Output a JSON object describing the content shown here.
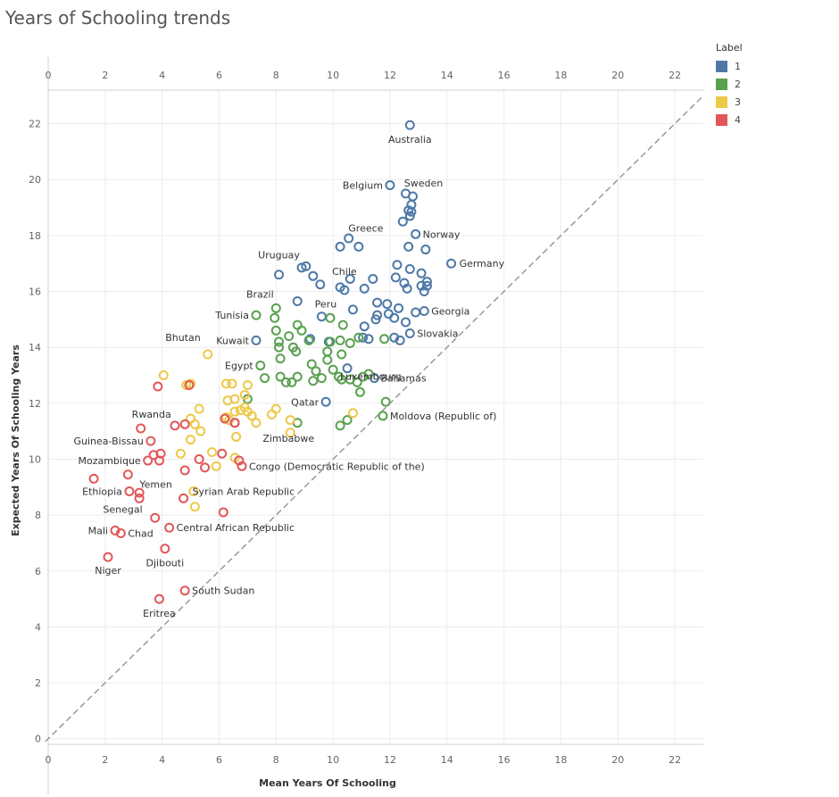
{
  "page": {
    "title": "Years of Schooling trends"
  },
  "legend": {
    "title": "Label",
    "items": [
      {
        "label": "1",
        "color": "#4e79a7"
      },
      {
        "label": "2",
        "color": "#59a14f"
      },
      {
        "label": "3",
        "color": "#edc948"
      },
      {
        "label": "4",
        "color": "#e15759"
      }
    ]
  },
  "chart_data": {
    "type": "scatter",
    "title": "Years of Schooling trends",
    "xlabel": "Mean Years Of Schooling",
    "ylabel": "Expected Years Of Schooling Years",
    "xlim": [
      0,
      23
    ],
    "ylim": [
      -0.2,
      23.2
    ],
    "xticks": [
      0,
      2,
      4,
      6,
      8,
      10,
      12,
      14,
      16,
      18,
      20,
      22
    ],
    "yticks": [
      0,
      2,
      4,
      6,
      8,
      10,
      12,
      14,
      16,
      18,
      20,
      22
    ],
    "grid": true,
    "reference_line": "y = x (dashed)",
    "legend_position": "top-right",
    "series": [
      {
        "name": "1",
        "color": "#4e79a7",
        "points": [
          {
            "x": 12.7,
            "y": 21.95,
            "label": "Australia"
          },
          {
            "x": 12.0,
            "y": 19.8,
            "label": "Belgium"
          },
          {
            "x": 12.55,
            "y": 19.5,
            "label": "Sweden"
          },
          {
            "x": 12.8,
            "y": 19.4
          },
          {
            "x": 12.75,
            "y": 19.1
          },
          {
            "x": 12.65,
            "y": 18.9
          },
          {
            "x": 12.75,
            "y": 18.85
          },
          {
            "x": 12.7,
            "y": 18.7
          },
          {
            "x": 12.45,
            "y": 18.5
          },
          {
            "x": 10.55,
            "y": 17.9
          },
          {
            "x": 10.25,
            "y": 17.6
          },
          {
            "x": 10.9,
            "y": 17.6,
            "label": "Greece"
          },
          {
            "x": 12.9,
            "y": 18.05,
            "label": "Norway"
          },
          {
            "x": 12.65,
            "y": 17.6
          },
          {
            "x": 13.25,
            "y": 17.5
          },
          {
            "x": 14.15,
            "y": 17.0,
            "label": "Germany"
          },
          {
            "x": 12.25,
            "y": 16.95
          },
          {
            "x": 12.7,
            "y": 16.8
          },
          {
            "x": 13.1,
            "y": 16.65
          },
          {
            "x": 12.2,
            "y": 16.5
          },
          {
            "x": 12.5,
            "y": 16.3
          },
          {
            "x": 13.3,
            "y": 16.35
          },
          {
            "x": 13.3,
            "y": 16.2
          },
          {
            "x": 13.1,
            "y": 16.2
          },
          {
            "x": 12.6,
            "y": 16.1
          },
          {
            "x": 13.2,
            "y": 16.0
          },
          {
            "x": 11.4,
            "y": 16.45
          },
          {
            "x": 10.6,
            "y": 16.45
          },
          {
            "x": 11.1,
            "y": 16.1
          },
          {
            "x": 10.25,
            "y": 16.15
          },
          {
            "x": 10.4,
            "y": 16.05,
            "label": "Chile"
          },
          {
            "x": 8.9,
            "y": 16.85
          },
          {
            "x": 9.05,
            "y": 16.9
          },
          {
            "x": 8.1,
            "y": 16.6,
            "label": "Uruguay"
          },
          {
            "x": 9.3,
            "y": 16.55
          },
          {
            "x": 9.55,
            "y": 16.25
          },
          {
            "x": 8.75,
            "y": 15.65
          },
          {
            "x": 11.55,
            "y": 15.6
          },
          {
            "x": 11.9,
            "y": 15.55
          },
          {
            "x": 12.3,
            "y": 15.4
          },
          {
            "x": 10.7,
            "y": 15.35
          },
          {
            "x": 11.55,
            "y": 15.15
          },
          {
            "x": 11.95,
            "y": 15.2
          },
          {
            "x": 12.15,
            "y": 15.05
          },
          {
            "x": 12.9,
            "y": 15.25
          },
          {
            "x": 13.2,
            "y": 15.3,
            "label": "Georgia"
          },
          {
            "x": 12.55,
            "y": 14.9
          },
          {
            "x": 11.1,
            "y": 14.75
          },
          {
            "x": 11.5,
            "y": 15.0
          },
          {
            "x": 9.6,
            "y": 15.1
          },
          {
            "x": 12.7,
            "y": 14.5,
            "label": "Slovakia"
          },
          {
            "x": 12.35,
            "y": 14.25
          },
          {
            "x": 12.15,
            "y": 14.35
          },
          {
            "x": 11.05,
            "y": 14.35
          },
          {
            "x": 11.25,
            "y": 14.3
          },
          {
            "x": 9.85,
            "y": 14.2
          },
          {
            "x": 9.2,
            "y": 14.3
          },
          {
            "x": 7.3,
            "y": 14.25,
            "label": "Kuwait"
          },
          {
            "x": 10.5,
            "y": 13.25,
            "label": "Luxembourg"
          },
          {
            "x": 11.45,
            "y": 12.9,
            "label": "Bahamas"
          },
          {
            "x": 9.75,
            "y": 12.05,
            "label": "Qatar"
          }
        ]
      },
      {
        "name": "2",
        "color": "#59a14f",
        "points": [
          {
            "x": 8.0,
            "y": 15.4,
            "label": "Brazil"
          },
          {
            "x": 7.95,
            "y": 15.05
          },
          {
            "x": 7.3,
            "y": 15.15,
            "label": "Tunisia"
          },
          {
            "x": 9.9,
            "y": 15.05,
            "label": "Peru"
          },
          {
            "x": 10.35,
            "y": 14.8
          },
          {
            "x": 8.75,
            "y": 14.8
          },
          {
            "x": 8.9,
            "y": 14.6
          },
          {
            "x": 8.0,
            "y": 14.6
          },
          {
            "x": 8.45,
            "y": 14.4
          },
          {
            "x": 9.15,
            "y": 14.25
          },
          {
            "x": 8.1,
            "y": 14.2
          },
          {
            "x": 8.6,
            "y": 14.0
          },
          {
            "x": 8.1,
            "y": 14.0
          },
          {
            "x": 8.7,
            "y": 13.85
          },
          {
            "x": 9.9,
            "y": 14.2
          },
          {
            "x": 10.25,
            "y": 14.25
          },
          {
            "x": 10.6,
            "y": 14.15
          },
          {
            "x": 10.9,
            "y": 14.35
          },
          {
            "x": 11.8,
            "y": 14.3
          },
          {
            "x": 8.15,
            "y": 13.6
          },
          {
            "x": 7.45,
            "y": 13.35,
            "label": "Egypt"
          },
          {
            "x": 9.25,
            "y": 13.4
          },
          {
            "x": 9.4,
            "y": 13.15
          },
          {
            "x": 9.8,
            "y": 13.85
          },
          {
            "x": 10.3,
            "y": 13.75
          },
          {
            "x": 10.0,
            "y": 13.2
          },
          {
            "x": 9.8,
            "y": 13.55
          },
          {
            "x": 7.6,
            "y": 12.9
          },
          {
            "x": 8.15,
            "y": 12.95
          },
          {
            "x": 8.35,
            "y": 12.75
          },
          {
            "x": 8.55,
            "y": 12.75
          },
          {
            "x": 8.75,
            "y": 12.95
          },
          {
            "x": 9.3,
            "y": 12.8
          },
          {
            "x": 9.6,
            "y": 12.9
          },
          {
            "x": 10.2,
            "y": 12.95
          },
          {
            "x": 10.3,
            "y": 12.85
          },
          {
            "x": 10.6,
            "y": 12.85
          },
          {
            "x": 10.85,
            "y": 12.75
          },
          {
            "x": 11.05,
            "y": 12.95
          },
          {
            "x": 11.25,
            "y": 13.05
          },
          {
            "x": 10.95,
            "y": 12.4
          },
          {
            "x": 7.0,
            "y": 12.15
          },
          {
            "x": 11.85,
            "y": 12.05
          },
          {
            "x": 8.75,
            "y": 11.3,
            "label": "Zimbabwe"
          },
          {
            "x": 10.25,
            "y": 11.2
          },
          {
            "x": 10.5,
            "y": 11.4
          },
          {
            "x": 11.75,
            "y": 11.55,
            "label": "Moldova (Republic of)"
          }
        ]
      },
      {
        "name": "3",
        "color": "#edc948",
        "points": [
          {
            "x": 5.6,
            "y": 13.75,
            "label": "Bhutan"
          },
          {
            "x": 4.05,
            "y": 13.0
          },
          {
            "x": 4.85,
            "y": 12.65
          },
          {
            "x": 5.0,
            "y": 12.7
          },
          {
            "x": 6.25,
            "y": 12.7
          },
          {
            "x": 6.45,
            "y": 12.7
          },
          {
            "x": 7.0,
            "y": 12.65
          },
          {
            "x": 6.9,
            "y": 12.3
          },
          {
            "x": 6.3,
            "y": 12.1
          },
          {
            "x": 6.55,
            "y": 12.15
          },
          {
            "x": 6.9,
            "y": 11.85
          },
          {
            "x": 7.0,
            "y": 11.7
          },
          {
            "x": 6.55,
            "y": 11.7
          },
          {
            "x": 6.75,
            "y": 11.75
          },
          {
            "x": 7.15,
            "y": 11.55
          },
          {
            "x": 7.85,
            "y": 11.6
          },
          {
            "x": 8.0,
            "y": 11.8
          },
          {
            "x": 5.3,
            "y": 11.8
          },
          {
            "x": 5.0,
            "y": 11.45
          },
          {
            "x": 5.15,
            "y": 11.25
          },
          {
            "x": 6.25,
            "y": 11.5
          },
          {
            "x": 6.35,
            "y": 11.4
          },
          {
            "x": 7.3,
            "y": 11.3
          },
          {
            "x": 8.5,
            "y": 11.4
          },
          {
            "x": 5.35,
            "y": 11.0
          },
          {
            "x": 5.0,
            "y": 10.7
          },
          {
            "x": 6.6,
            "y": 10.8
          },
          {
            "x": 8.5,
            "y": 10.95
          },
          {
            "x": 10.7,
            "y": 11.65
          },
          {
            "x": 5.75,
            "y": 10.25
          },
          {
            "x": 4.65,
            "y": 10.2
          },
          {
            "x": 6.55,
            "y": 10.05
          },
          {
            "x": 5.9,
            "y": 9.75
          },
          {
            "x": 5.1,
            "y": 8.85
          },
          {
            "x": 5.15,
            "y": 8.3
          }
        ]
      },
      {
        "name": "4",
        "color": "#e15759",
        "points": [
          {
            "x": 3.85,
            "y": 12.6
          },
          {
            "x": 4.95,
            "y": 12.65
          },
          {
            "x": 3.25,
            "y": 11.1,
            "label": "Rwanda"
          },
          {
            "x": 4.45,
            "y": 11.2
          },
          {
            "x": 4.8,
            "y": 11.25
          },
          {
            "x": 6.2,
            "y": 11.45
          },
          {
            "x": 6.55,
            "y": 11.3
          },
          {
            "x": 6.55,
            "y": 11.3
          },
          {
            "x": 3.6,
            "y": 10.65,
            "label": "Guinea-Bissau"
          },
          {
            "x": 3.7,
            "y": 10.15
          },
          {
            "x": 3.95,
            "y": 10.2
          },
          {
            "x": 3.5,
            "y": 9.95,
            "label": "Mozambique"
          },
          {
            "x": 3.9,
            "y": 9.95
          },
          {
            "x": 5.3,
            "y": 10.0
          },
          {
            "x": 6.1,
            "y": 10.2
          },
          {
            "x": 6.7,
            "y": 9.95
          },
          {
            "x": 6.8,
            "y": 9.75
          },
          {
            "x": 5.5,
            "y": 9.7
          },
          {
            "x": 4.8,
            "y": 9.6
          },
          {
            "x": 1.6,
            "y": 9.3
          },
          {
            "x": 2.8,
            "y": 9.45,
            "label": "Yemen"
          },
          {
            "x": 2.85,
            "y": 8.85,
            "label": "Ethiopia"
          },
          {
            "x": 3.2,
            "y": 8.8
          },
          {
            "x": 3.2,
            "y": 8.6
          },
          {
            "x": 4.75,
            "y": 8.6,
            "label": "Syrian Arab Republic"
          },
          {
            "x": 3.75,
            "y": 7.9,
            "label": "Senegal"
          },
          {
            "x": 6.15,
            "y": 8.1
          },
          {
            "x": 2.35,
            "y": 7.45
          },
          {
            "x": 2.55,
            "y": 7.35
          },
          {
            "x": 4.25,
            "y": 7.55,
            "label": "Central African Republic"
          },
          {
            "x": 4.1,
            "y": 6.8,
            "label": "Djibouti"
          },
          {
            "x": 2.1,
            "y": 6.5,
            "label": "Niger"
          },
          {
            "x": 4.8,
            "y": 5.3,
            "label": "South Sudan"
          },
          {
            "x": 3.9,
            "y": 5.0,
            "label": "Eritrea"
          }
        ]
      }
    ],
    "annotations": [
      {
        "text": "Australia",
        "x": 12.7,
        "y": 21.95
      },
      {
        "text": "Sweden",
        "x": 12.55,
        "y": 19.5
      },
      {
        "text": "Belgium",
        "x": 12.0,
        "y": 19.8
      },
      {
        "text": "Greece",
        "x": 10.9,
        "y": 17.6
      },
      {
        "text": "Norway",
        "x": 12.9,
        "y": 18.05
      },
      {
        "text": "Germany",
        "x": 14.15,
        "y": 17.0
      },
      {
        "text": "Chile",
        "x": 10.4,
        "y": 16.05
      },
      {
        "text": "Uruguay",
        "x": 8.1,
        "y": 16.6
      },
      {
        "text": "Brazil",
        "x": 8.0,
        "y": 15.4
      },
      {
        "text": "Peru",
        "x": 9.9,
        "y": 15.05
      },
      {
        "text": "Tunisia",
        "x": 7.3,
        "y": 15.15
      },
      {
        "text": "Georgia",
        "x": 13.2,
        "y": 15.3
      },
      {
        "text": "Slovakia",
        "x": 12.7,
        "y": 14.5
      },
      {
        "text": "Kuwait",
        "x": 7.3,
        "y": 14.25
      },
      {
        "text": "Luxembourg",
        "x": 10.5,
        "y": 13.25
      },
      {
        "text": "Bhutan",
        "x": 5.6,
        "y": 13.75
      },
      {
        "text": "Egypt",
        "x": 7.45,
        "y": 13.35
      },
      {
        "text": "Bahamas",
        "x": 11.45,
        "y": 12.9
      },
      {
        "text": "Qatar",
        "x": 9.75,
        "y": 12.05
      },
      {
        "text": "Moldova (Republic of)",
        "x": 11.75,
        "y": 11.55
      },
      {
        "text": "Rwanda",
        "x": 3.25,
        "y": 11.1
      },
      {
        "text": "Zimbabwe",
        "x": 8.75,
        "y": 11.3
      },
      {
        "text": "Guinea-Bissau",
        "x": 3.6,
        "y": 10.65
      },
      {
        "text": "Mozambique",
        "x": 3.5,
        "y": 9.95
      },
      {
        "text": "Congo (Democratic Republic of the)",
        "x": 6.8,
        "y": 9.75
      },
      {
        "text": "Yemen",
        "x": 2.8,
        "y": 9.45
      },
      {
        "text": "Ethiopia",
        "x": 2.85,
        "y": 8.85
      },
      {
        "text": "Syrian Arab Republic",
        "x": 4.75,
        "y": 8.6
      },
      {
        "text": "Senegal",
        "x": 3.75,
        "y": 7.9
      },
      {
        "text": "Central African Republic",
        "x": 4.25,
        "y": 7.55
      },
      {
        "text": "Mali",
        "x": 2.35,
        "y": 7.45
      },
      {
        "text": "Chad",
        "x": 2.55,
        "y": 7.35
      },
      {
        "text": "Djibouti",
        "x": 4.1,
        "y": 6.8
      },
      {
        "text": "Niger",
        "x": 2.1,
        "y": 6.5
      },
      {
        "text": "South Sudan",
        "x": 4.8,
        "y": 5.3
      },
      {
        "text": "Eritrea",
        "x": 3.9,
        "y": 5.0
      }
    ]
  }
}
